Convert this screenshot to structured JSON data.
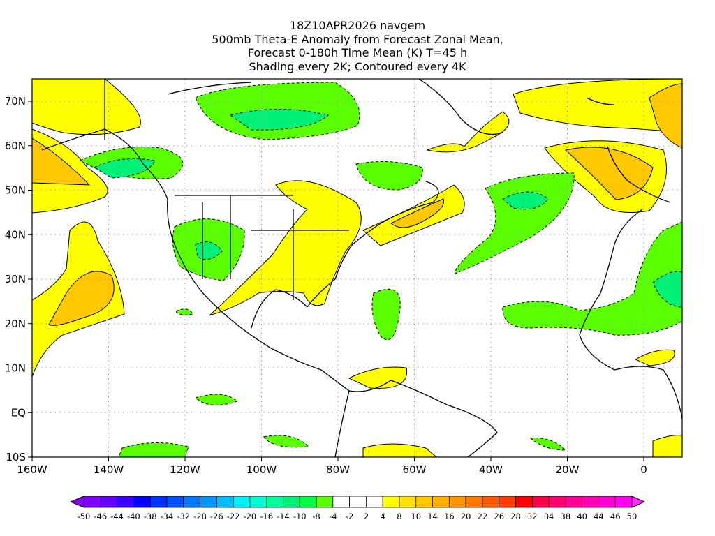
{
  "title": {
    "line1": "18Z10APR2026 navgem",
    "line2": "500mb Theta-E Anomaly from Forecast Zonal Mean,",
    "line3": "Forecast 0-180h Time Mean (K) T=45 h",
    "line4": "Shading every 2K; Contoured every 4K"
  },
  "axes": {
    "lon_ticks": [
      "160W",
      "140W",
      "120W",
      "100W",
      "80W",
      "60W",
      "40W",
      "20W",
      "0"
    ],
    "lat_ticks": [
      "70N",
      "60N",
      "50N",
      "40N",
      "30N",
      "20N",
      "10N",
      "EQ",
      "10S"
    ]
  },
  "colorbar": {
    "labels": [
      "-50",
      "-46",
      "-44",
      "-40",
      "-38",
      "-34",
      "-32",
      "-28",
      "-26",
      "-22",
      "-20",
      "-16",
      "-14",
      "-10",
      "-8",
      "-4",
      "-2",
      "2",
      "4",
      "8",
      "10",
      "14",
      "16",
      "20",
      "22",
      "26",
      "28",
      "32",
      "34",
      "38",
      "40",
      "44",
      "46",
      "50"
    ],
    "colors": [
      "#7d00ff",
      "#6400ff",
      "#3a00ff",
      "#0000ff",
      "#0032ff",
      "#0050ff",
      "#0078ff",
      "#0096ff",
      "#00beff",
      "#00f0ff",
      "#00ffd2",
      "#00ffa0",
      "#00f078",
      "#00ff40",
      "#5aff00",
      "#ffffff",
      "#ffffff",
      "#ffffff",
      "#ffff00",
      "#ffe100",
      "#ffc800",
      "#ffaf00",
      "#ff9600",
      "#ff7800",
      "#ff5a00",
      "#ff3c00",
      "#ff0000",
      "#ff0046",
      "#ff006e",
      "#ff0096",
      "#ff00b4",
      "#ff00d2",
      "#ff00f0"
    ],
    "low_color": "#8c00ff",
    "high_color": "#ff28ff"
  }
}
